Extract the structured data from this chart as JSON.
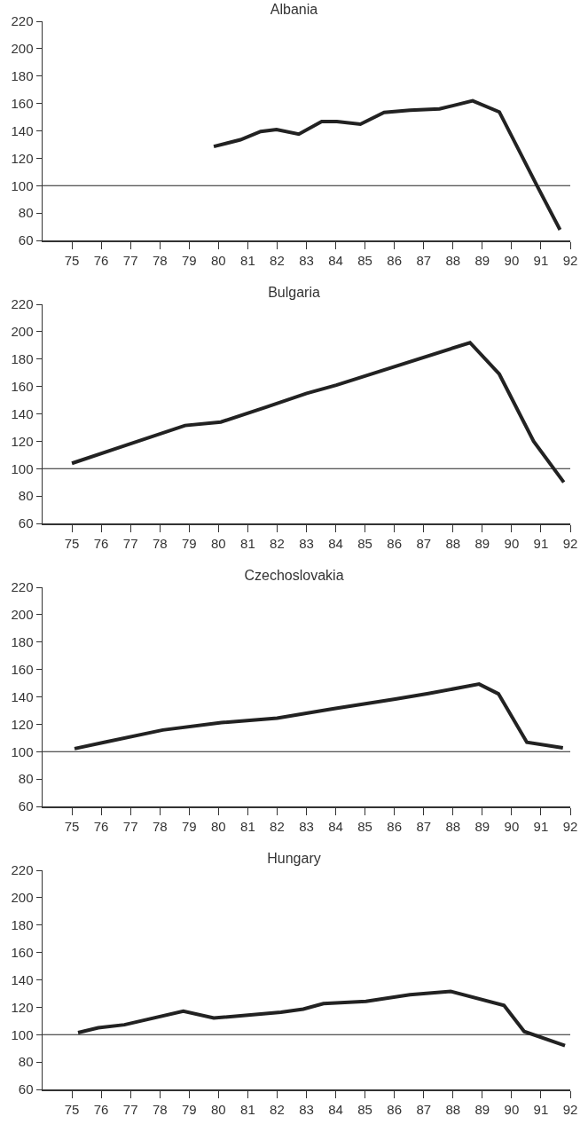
{
  "chart_data": [
    {
      "type": "line",
      "title": "Albania",
      "x": [
        79.84,
        80.75,
        81.44,
        81.98,
        82.74,
        83.52,
        84.04,
        84.84,
        85.65,
        86.53,
        87.54,
        88.67,
        89.58,
        90.87,
        91.65
      ],
      "series": [
        {
          "color": "#222222",
          "values": [
            128.6,
            133.5,
            139.5,
            141,
            137.6,
            146.8,
            146.8,
            144.9,
            153.5,
            155,
            156,
            162,
            153.8,
            99.7,
            67.8
          ]
        }
      ],
      "xlim": [
        74,
        92
      ],
      "xticks": [
        75,
        76,
        77,
        78,
        79,
        80,
        81,
        82,
        83,
        84,
        85,
        86,
        87,
        88,
        89,
        90,
        91,
        92
      ],
      "ylim": [
        60,
        220
      ],
      "yticks": [
        60,
        80,
        100,
        120,
        140,
        160,
        180,
        200,
        220
      ],
      "ref_lines": [
        {
          "axis": "y",
          "value": 100,
          "color": "#222222"
        }
      ],
      "grid": false
    },
    {
      "type": "line",
      "title": "Bulgaria",
      "x": [
        75,
        78.86,
        80.08,
        81.63,
        83.01,
        84.02,
        88.58,
        89.58,
        90.75,
        91.78
      ],
      "series": [
        {
          "color": "#222222",
          "values": [
            103.9,
            131.5,
            134,
            145,
            155,
            161,
            192,
            169,
            120,
            90
          ]
        }
      ],
      "xlim": [
        74,
        92
      ],
      "xticks": [
        75,
        76,
        77,
        78,
        79,
        80,
        81,
        82,
        83,
        84,
        85,
        86,
        87,
        88,
        89,
        90,
        91,
        92
      ],
      "ylim": [
        60,
        220
      ],
      "yticks": [
        60,
        80,
        100,
        120,
        140,
        160,
        180,
        200,
        220
      ],
      "ref_lines": [
        {
          "axis": "y",
          "value": 100,
          "color": "#222222"
        }
      ],
      "grid": false
    },
    {
      "type": "line",
      "title": "Czechoslovakia",
      "x": [
        75.09,
        76.1,
        78.1,
        80.1,
        82,
        83.9,
        86.03,
        87.16,
        88.89,
        89.55,
        90.52,
        91.75
      ],
      "series": [
        {
          "color": "#222222",
          "values": [
            102.2,
            106.8,
            115.8,
            121.2,
            124.5,
            131.3,
            138.4,
            142.4,
            149.3,
            142.2,
            106.8,
            102.7
          ]
        }
      ],
      "xlim": [
        74,
        92
      ],
      "xticks": [
        75,
        76,
        77,
        78,
        79,
        80,
        81,
        82,
        83,
        84,
        85,
        86,
        87,
        88,
        89,
        90,
        91,
        92
      ],
      "ylim": [
        60,
        220
      ],
      "yticks": [
        60,
        80,
        100,
        120,
        140,
        160,
        180,
        200,
        220
      ],
      "ref_lines": [
        {
          "axis": "y",
          "value": 100,
          "color": "#222222"
        }
      ],
      "grid": false
    },
    {
      "type": "line",
      "title": "Hungary",
      "x": [
        75.21,
        75.9,
        76.79,
        78.8,
        79.84,
        82.13,
        82.89,
        83.58,
        85.03,
        86.53,
        87.92,
        89.74,
        90.43,
        91.82
      ],
      "series": [
        {
          "color": "#222222",
          "values": [
            101.5,
            105,
            107.2,
            117.2,
            112.1,
            116.4,
            118.6,
            122.6,
            124.3,
            129.2,
            131.6,
            121.3,
            102.3,
            92
          ]
        }
      ],
      "xlim": [
        74,
        92
      ],
      "xticks": [
        75,
        76,
        77,
        78,
        79,
        80,
        81,
        82,
        83,
        84,
        85,
        86,
        87,
        88,
        89,
        90,
        91,
        92
      ],
      "ylim": [
        60,
        220
      ],
      "yticks": [
        60,
        80,
        100,
        120,
        140,
        160,
        180,
        200,
        220
      ],
      "ref_lines": [
        {
          "axis": "y",
          "value": 100,
          "color": "#222222"
        }
      ],
      "grid": false
    }
  ]
}
